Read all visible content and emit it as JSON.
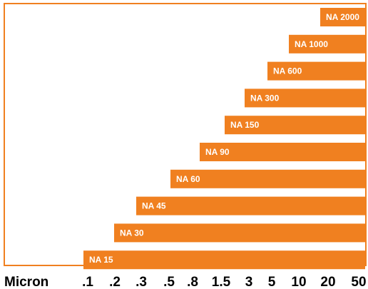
{
  "chart_data": {
    "type": "bar",
    "orientation": "horizontal",
    "x_unit_label": "Micron",
    "x_axis_scale": "ordinal",
    "x_ticks": [
      ".1",
      ".2",
      ".3",
      ".5",
      ".8",
      "1.5",
      "3",
      "5",
      "10",
      "20",
      "50"
    ],
    "x_range": [
      ".1",
      "50"
    ],
    "bar_end": "50",
    "grid": false,
    "series": [
      {
        "label": "NA 2000",
        "start": "20"
      },
      {
        "label": "NA 1000",
        "start": "10"
      },
      {
        "label": "NA 600",
        "start": "8"
      },
      {
        "label": "NA 300",
        "start": "3"
      },
      {
        "label": "NA 150",
        "start": "1.5"
      },
      {
        "label": "NA 90",
        "start": ".8"
      },
      {
        "label": "NA 60",
        "start": ".5"
      },
      {
        "label": "NA 45",
        "start": ".3"
      },
      {
        "label": "NA 30",
        "start": ".2"
      },
      {
        "label": "NA 15",
        "start": ".1"
      }
    ],
    "colors": {
      "bar": "#f08020",
      "frame": "#f08020",
      "text_on_bar": "#ffffff"
    }
  }
}
